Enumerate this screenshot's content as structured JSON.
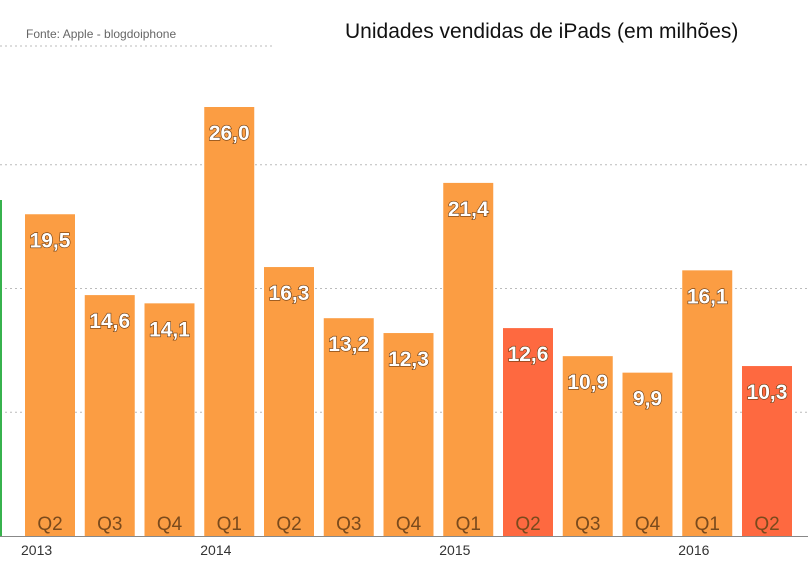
{
  "colors": {
    "normal": "#fb9d43",
    "highlight": "#fe6940",
    "gridline": "#bbbbbb",
    "axis_accent": "#37b24d"
  },
  "chart_data": {
    "type": "bar",
    "source": "Fonte: Apple - blogdoiphone",
    "title": "Unidades vendidas de iPads (em milhões)",
    "ylim": [
      0,
      30
    ],
    "grid": true,
    "bars": [
      {
        "quarter": "Q2",
        "value": 19.5,
        "label": "19,5",
        "highlight": false
      },
      {
        "quarter": "Q3",
        "value": 14.6,
        "label": "14,6",
        "highlight": false
      },
      {
        "quarter": "Q4",
        "value": 14.1,
        "label": "14,1",
        "highlight": false
      },
      {
        "quarter": "Q1",
        "value": 26.0,
        "label": "26,0",
        "highlight": false
      },
      {
        "quarter": "Q2",
        "value": 16.3,
        "label": "16,3",
        "highlight": false
      },
      {
        "quarter": "Q3",
        "value": 13.2,
        "label": "13,2",
        "highlight": false
      },
      {
        "quarter": "Q4",
        "value": 12.3,
        "label": "12,3",
        "highlight": false
      },
      {
        "quarter": "Q1",
        "value": 21.4,
        "label": "21,4",
        "highlight": false
      },
      {
        "quarter": "Q2",
        "value": 12.6,
        "label": "12,6",
        "highlight": true
      },
      {
        "quarter": "Q3",
        "value": 10.9,
        "label": "10,9",
        "highlight": false
      },
      {
        "quarter": "Q4",
        "value": 9.9,
        "label": "9,9",
        "highlight": false
      },
      {
        "quarter": "Q1",
        "value": 16.1,
        "label": "16,1",
        "highlight": false
      },
      {
        "quarter": "Q2",
        "value": 10.3,
        "label": "10,3",
        "highlight": true
      }
    ],
    "years": [
      {
        "label": "2013",
        "bar_index": 0
      },
      {
        "label": "2014",
        "bar_index": 3
      },
      {
        "label": "2015",
        "bar_index": 7
      },
      {
        "label": "2016",
        "bar_index": 11
      }
    ]
  }
}
